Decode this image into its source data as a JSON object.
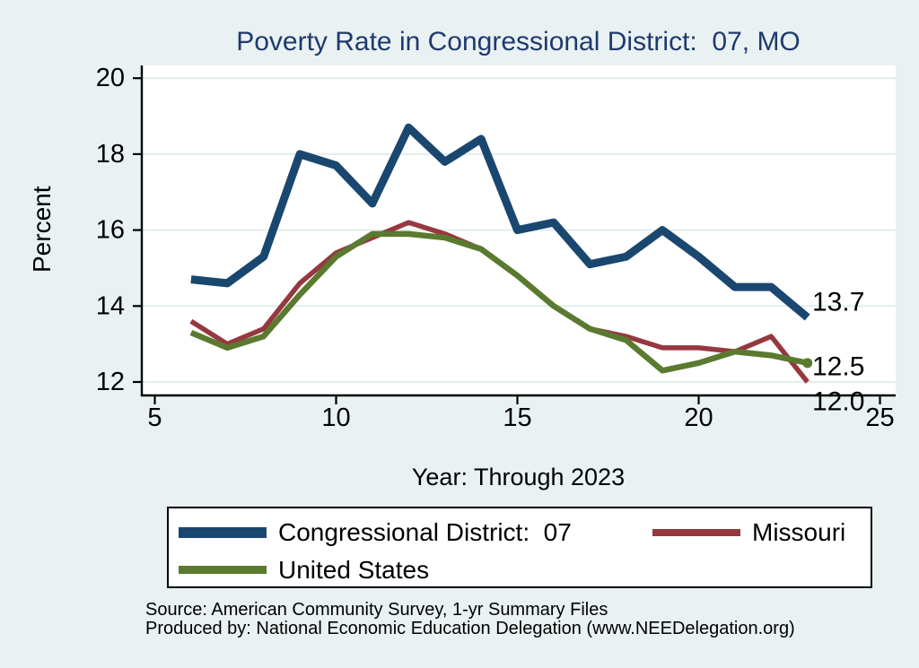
{
  "title": "Poverty Rate in Congressional District:  07, MO",
  "x_axis": {
    "label": "Year: Through 2023",
    "ticks": [
      5,
      10,
      15,
      20,
      25
    ]
  },
  "y_axis": {
    "label": "Percent",
    "ticks": [
      12,
      14,
      16,
      18,
      20
    ]
  },
  "chart_data": {
    "type": "line",
    "x": [
      6,
      7,
      8,
      9,
      10,
      11,
      12,
      13,
      14,
      15,
      16,
      17,
      18,
      19,
      20,
      21,
      22,
      23
    ],
    "series": [
      {
        "name": "Congressional District:  07",
        "color": "#1a476f",
        "width": 9,
        "values": [
          14.7,
          14.6,
          15.3,
          18.0,
          17.7,
          16.7,
          18.7,
          17.8,
          18.4,
          16.0,
          16.2,
          15.1,
          15.3,
          16.0,
          15.3,
          14.5,
          14.5,
          13.7
        ],
        "end_label": "13.7",
        "end_marker": false
      },
      {
        "name": "Missouri",
        "color": "#96383f",
        "width": 5.5,
        "values": [
          13.6,
          13.0,
          13.4,
          14.6,
          15.4,
          15.8,
          16.2,
          15.9,
          15.5,
          14.8,
          14.0,
          13.4,
          13.2,
          12.9,
          12.9,
          12.8,
          13.2,
          12.0
        ],
        "end_label": "12.0",
        "end_marker": false
      },
      {
        "name": "United States",
        "color": "#5a7a2f",
        "width": 6.5,
        "values": [
          13.3,
          12.9,
          13.2,
          14.3,
          15.3,
          15.9,
          15.9,
          15.8,
          15.5,
          14.8,
          14.0,
          13.4,
          13.1,
          12.3,
          12.5,
          12.8,
          12.7,
          12.5
        ],
        "end_label": "12.5",
        "end_marker": true
      }
    ],
    "title": "Poverty Rate in Congressional District:  07, MO",
    "xlabel": "Year: Through 2023",
    "ylabel": "Percent",
    "xlim": [
      4.6,
      25.4
    ],
    "ylim": [
      11.6,
      20.35
    ],
    "grid": "horizontal",
    "legend_position": "bottom"
  },
  "footer": {
    "source": "Source: American Community Survey, 1-yr Summary Files",
    "produced_by": "Produced by: National Economic Education Delegation (www.NEEDelegation.org)"
  },
  "colors": {
    "background": "#eaf1f2",
    "plot_background": "#ffffff",
    "title": "#1e3a6e",
    "gridline": "#e2edee",
    "axis": "#000000",
    "cd07_line": "#1a476f",
    "missouri_line": "#96383f",
    "us_line": "#5a7a2f"
  }
}
